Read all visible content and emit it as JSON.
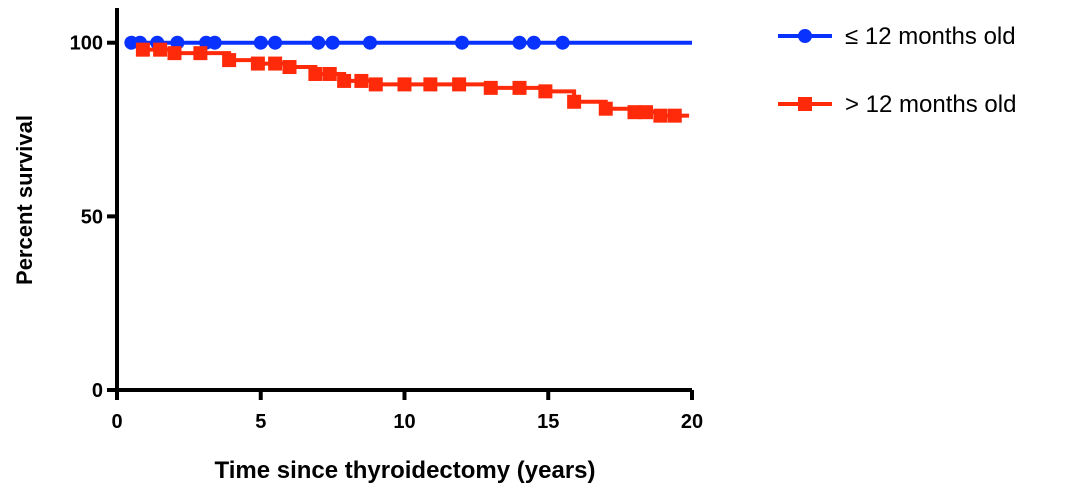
{
  "chart_data": {
    "type": "step",
    "x_label": "Time since thyroidectomy (years)",
    "y_label": "Percent survival",
    "xlim": [
      0,
      20
    ],
    "ylim": [
      0,
      110
    ],
    "xticks": [
      0,
      5,
      10,
      15,
      20
    ],
    "yticks": [
      0,
      50,
      100
    ],
    "legend": "top-right",
    "series": [
      {
        "name": "≤ 12 months old",
        "color": "#0a32ff",
        "marker": "circle",
        "x": [
          0.5,
          0.8,
          1.4,
          2.1,
          3.1,
          3.4,
          5.0,
          5.5,
          7.0,
          7.5,
          8.8,
          12.0,
          14.0,
          14.5,
          15.5,
          20
        ],
        "values": [
          100,
          100,
          100,
          100,
          100,
          100,
          100,
          100,
          100,
          100,
          100,
          100,
          100,
          100,
          100,
          100
        ]
      },
      {
        "name": "> 12 months old",
        "color": "#ff2a0a",
        "marker": "square",
        "x": [
          0.9,
          1.5,
          2.0,
          2.9,
          3.9,
          4.9,
          5.5,
          6.0,
          6.9,
          7.4,
          7.9,
          8.5,
          9.0,
          10.0,
          10.9,
          11.9,
          13.0,
          14.0,
          14.9,
          15.9,
          17.0,
          18.0,
          18.4,
          18.9,
          19.4,
          19.9
        ],
        "values": [
          98,
          98,
          97,
          97,
          95,
          94,
          94,
          93,
          91,
          91,
          89,
          89,
          88,
          88,
          88,
          88,
          87,
          87,
          86,
          83,
          81,
          80,
          80,
          79,
          79,
          79
        ]
      }
    ]
  }
}
